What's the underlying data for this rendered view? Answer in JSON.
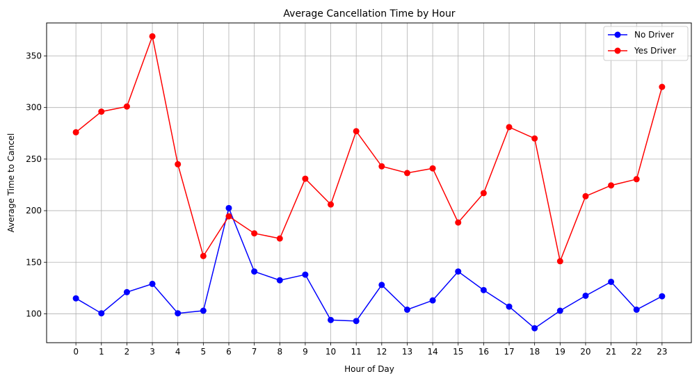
{
  "chart_data": {
    "type": "line",
    "title": "Average Cancellation Time by Hour",
    "xlabel": "Hour of Day",
    "ylabel": "Average Time to Cancel",
    "x": [
      0,
      1,
      2,
      3,
      4,
      5,
      6,
      7,
      8,
      9,
      10,
      11,
      12,
      13,
      14,
      15,
      16,
      17,
      18,
      19,
      20,
      21,
      22,
      23
    ],
    "x_ticks": [
      "0",
      "1",
      "2",
      "3",
      "4",
      "5",
      "6",
      "7",
      "8",
      "9",
      "10",
      "11",
      "12",
      "13",
      "14",
      "15",
      "16",
      "17",
      "18",
      "19",
      "20",
      "21",
      "22",
      "23"
    ],
    "y_ticks": [
      100,
      150,
      200,
      250,
      300,
      350
    ],
    "xlim": [
      -1.15,
      24.15
    ],
    "ylim": [
      72,
      382
    ],
    "grid": true,
    "legend_position": "top-right",
    "series": [
      {
        "name": "No Driver",
        "color": "#0000ff",
        "values": [
          115,
          100.5,
          121,
          129,
          100.5,
          103,
          202.5,
          141,
          132.5,
          138,
          94,
          93,
          128,
          104,
          113,
          141,
          123,
          107,
          86,
          103,
          117.5,
          131,
          104,
          117
        ]
      },
      {
        "name": "Yes Driver",
        "color": "#ff0000",
        "values": [
          276,
          296,
          301,
          369,
          245,
          156,
          194.5,
          178,
          173,
          231,
          206,
          277,
          243,
          236.5,
          241,
          188.5,
          217,
          281,
          270,
          151,
          214,
          224.5,
          230.5,
          320
        ]
      }
    ]
  }
}
